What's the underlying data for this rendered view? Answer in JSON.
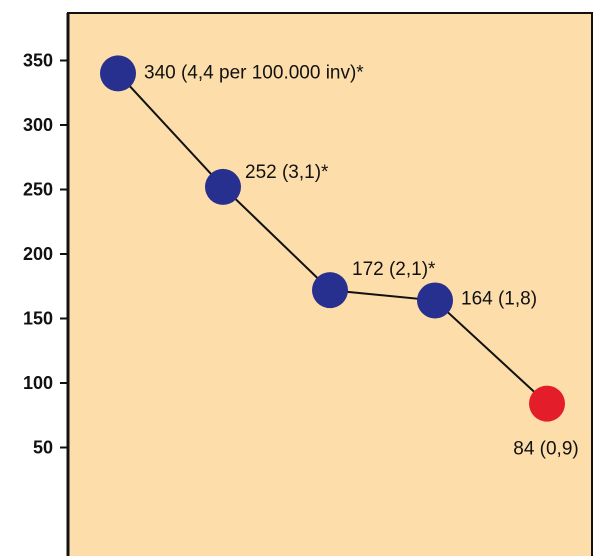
{
  "chart_data": {
    "type": "line",
    "title": "",
    "xlabel": "",
    "ylabel": "",
    "ylim": [
      0,
      360
    ],
    "yticks": [
      50,
      100,
      150,
      200,
      250,
      300,
      350
    ],
    "grid": false,
    "background_color": "#fddeab",
    "line_color": "#111111",
    "series": [
      {
        "points": [
          {
            "value": 340,
            "label": "340 (4,4 per 100.000 inv)*",
            "color": "#272f8f"
          },
          {
            "value": 252,
            "label": "252 (3,1)*",
            "color": "#272f8f"
          },
          {
            "value": 172,
            "label": "172 (2,1)*",
            "color": "#272f8f"
          },
          {
            "value": 164,
            "label": "164 (1,8)",
            "color": "#272f8f"
          },
          {
            "value": 84,
            "label": "84 (0,9)",
            "color": "#e41d2a"
          }
        ]
      }
    ]
  }
}
